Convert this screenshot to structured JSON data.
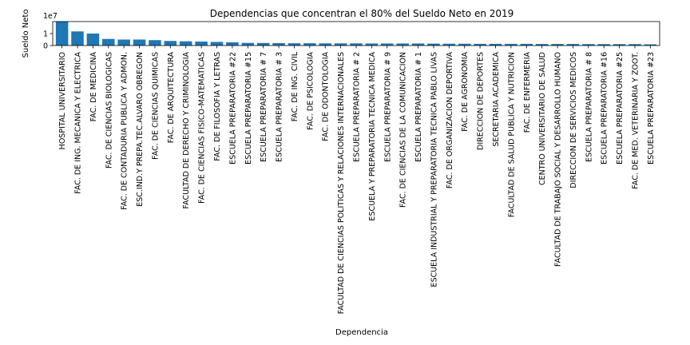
{
  "chart_data": {
    "type": "bar",
    "title": "Dependencias que concentran el 80% del Sueldo Neto en 2019",
    "xlabel": "Dependencia",
    "ylabel": "Sueldo Neto",
    "y_offset_label": "1e7",
    "y_ticks": [
      0,
      1
    ],
    "y_tick_labels": [
      "0",
      "1"
    ],
    "ylim": [
      0,
      2.0
    ],
    "grid": false,
    "bar_color": "#1f77b4",
    "categories": [
      "HOSPITAL UNIVERSITARIO",
      "FAC. DE ING. MECANICA Y ELECTRICA",
      "FAC. DE MEDICINA",
      "FAC. DE CIENCIAS BIOLOGICAS",
      "FAC. DE CONTADURIA PUBLICA Y ADMON.",
      "ESC.IND.Y PREPA.TEC.ALVARO OBREGON",
      "FAC. DE CIENCIAS QUIMICAS",
      "FAC. DE ARQUITECTURA",
      "FACULTAD DE DERECHO Y CRIMINOLOGIA",
      "FAC. DE CIENCIAS FISICO-MATEMATICAS",
      "FAC. DE FILOSOFIA Y LETRAS",
      "ESCUELA PREPARATORIA #22",
      "ESCUELA PREPARATORIA #15",
      "ESCUELA PREPARATORIA # 7",
      "ESCUELA PREPARATORIA # 3",
      "FAC. DE ING. CIVIL",
      "FAC. DE PSICOLOGIA",
      "FAC. DE ODONTOLOGIA",
      "FACULTAD DE CIENCIAS POLITICAS Y RELACIONES INTERNACIONALES",
      "ESCUELA PREPARATORIA # 2",
      "ESCUELA Y PREPARATORIA TECNICA MEDICA",
      "ESCUELA PREPARATORIA # 9",
      "FAC. DE CIENCIAS DE LA COMUNICACION",
      "ESCUELA PREPARATORIA # 1",
      "ESCUELA INDUSTRIAL Y PREPARATORIA TECNICA PABLO LIVAS",
      "FAC. DE ORGANIZACION DEPORTIVA",
      "FAC. DE AGRONOMIA",
      "DIRECCION DE DEPORTES",
      "SECRETARIA ACADEMICA",
      "FACULTAD DE SALUD PUBLICA Y NUTRICION",
      "FAC. DE ENFERMERIA",
      "CENTRO UNIVERSITARIO DE SALUD",
      "FACULTAD DE TRABAJO SOCIAL Y DESARROLLO HUMANO",
      "DIRECCION DE SERVICIOS MEDICOS",
      "ESCUELA PREPARATORIA # 8",
      "ESCUELA PREPARATORIA #16",
      "ESCUELA PREPARATORIA #25",
      "FAC. DE MED. VETERINARIA Y ZOOT.",
      "ESCUELA PREPARATORIA #23"
    ],
    "values": [
      2.05,
      1.18,
      1.0,
      0.55,
      0.5,
      0.5,
      0.45,
      0.38,
      0.35,
      0.33,
      0.3,
      0.27,
      0.22,
      0.21,
      0.2,
      0.19,
      0.19,
      0.18,
      0.18,
      0.18,
      0.17,
      0.17,
      0.17,
      0.17,
      0.16,
      0.15,
      0.15,
      0.14,
      0.14,
      0.14,
      0.14,
      0.13,
      0.13,
      0.13,
      0.12,
      0.12,
      0.12,
      0.12,
      0.1
    ]
  }
}
